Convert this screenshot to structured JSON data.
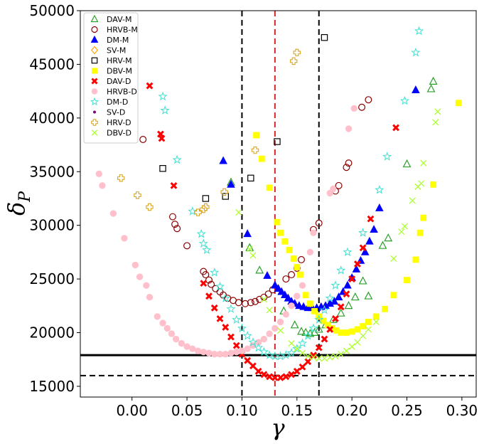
{
  "chart_data": {
    "type": "scatter",
    "title": "",
    "xlabel": "γ",
    "ylabel": "δ",
    "ylabel_sub": "P",
    "xlim": [
      -0.047,
      0.313
    ],
    "ylim": [
      14000,
      50000
    ],
    "x_ticks": [
      0.0,
      0.05,
      0.1,
      0.15,
      0.2,
      0.25,
      0.3
    ],
    "x_tick_labels": [
      "0.00",
      "0.05",
      "0.10",
      "0.15",
      "0.20",
      "0.25",
      "0.30"
    ],
    "y_ticks": [
      15000,
      20000,
      25000,
      30000,
      35000,
      40000,
      45000,
      50000
    ],
    "y_tick_labels": [
      "15000",
      "20000",
      "25000",
      "30000",
      "35000",
      "40000",
      "45000",
      "50000"
    ],
    "grid": false,
    "legend_position": "top-left",
    "reference_lines": [
      {
        "orientation": "vertical",
        "value": 0.1,
        "color": "#000000",
        "style": "dashed"
      },
      {
        "orientation": "vertical",
        "value": 0.17,
        "color": "#000000",
        "style": "dashed"
      },
      {
        "orientation": "vertical",
        "value": 0.13,
        "color": "#d62728",
        "style": "dashed"
      },
      {
        "orientation": "horizontal",
        "value": 17900,
        "color": "#000000",
        "style": "solid"
      },
      {
        "orientation": "horizontal",
        "value": 16000,
        "color": "#000000",
        "style": "dashed"
      }
    ],
    "series": [
      {
        "name": "DAV-M",
        "marker": "triangle-open",
        "color": "#2ca02c",
        "x": [
          0.09,
          0.107,
          0.116,
          0.138,
          0.148,
          0.154,
          0.158,
          0.162,
          0.166,
          0.17,
          0.176,
          0.183,
          0.19,
          0.197,
          0.203,
          0.21,
          0.215,
          0.228,
          0.233,
          0.25,
          0.272,
          0.274
        ],
        "y": [
          34000,
          27900,
          25800,
          22000,
          20700,
          20100,
          20000,
          19900,
          20000,
          20300,
          20700,
          21200,
          21800,
          22500,
          23300,
          24800,
          23400,
          28100,
          28800,
          35700,
          42700,
          43400
        ]
      },
      {
        "name": "HRVB-M",
        "marker": "circle-open",
        "color": "#8b0000",
        "x": [
          0.01,
          0.037,
          0.039,
          0.041,
          0.05,
          0.065,
          0.067,
          0.07,
          0.072,
          0.076,
          0.08,
          0.083,
          0.087,
          0.092,
          0.097,
          0.103,
          0.108,
          0.112,
          0.116,
          0.12,
          0.124,
          0.128,
          0.14,
          0.145,
          0.15,
          0.154,
          0.165,
          0.17,
          0.185,
          0.188,
          0.195,
          0.197,
          0.209,
          0.215
        ],
        "y": [
          38000,
          30800,
          30100,
          29700,
          28100,
          25700,
          25400,
          24900,
          24500,
          24100,
          23800,
          23500,
          23200,
          23000,
          22800,
          22700,
          22800,
          22900,
          23100,
          23300,
          23600,
          24000,
          25000,
          25400,
          26000,
          26800,
          29600,
          30200,
          33200,
          33700,
          35400,
          35800,
          41000,
          41700
        ]
      },
      {
        "name": "DM-M",
        "marker": "triangle",
        "color": "#0000ff",
        "x": [
          0.083,
          0.09,
          0.105,
          0.123,
          0.13,
          0.133,
          0.136,
          0.139,
          0.142,
          0.145,
          0.148,
          0.152,
          0.156,
          0.16,
          0.164,
          0.168,
          0.172,
          0.176,
          0.18,
          0.184,
          0.188,
          0.192,
          0.196,
          0.2,
          0.204,
          0.208,
          0.212,
          0.216,
          0.22,
          0.225,
          0.258
        ],
        "y": [
          36000,
          33800,
          29200,
          25300,
          24400,
          24100,
          23800,
          23500,
          23200,
          22900,
          22700,
          22500,
          22400,
          22300,
          22300,
          22300,
          22400,
          22500,
          22700,
          22900,
          23300,
          23800,
          24400,
          25100,
          25900,
          26700,
          27500,
          28500,
          29600,
          31600,
          42600
        ]
      },
      {
        "name": "SV-M",
        "marker": "diamond-open",
        "color": "#ffa500",
        "x": [],
        "y": []
      },
      {
        "name": "HRV-M",
        "marker": "square-open",
        "color": "#000000",
        "x": [
          0.028,
          0.067,
          0.085,
          0.108,
          0.132,
          0.175
        ],
        "y": [
          35300,
          32500,
          32700,
          34400,
          37800,
          47500
        ]
      },
      {
        "name": "DBV-M",
        "marker": "square",
        "color": "#ffff00",
        "x": [
          0.113,
          0.118,
          0.125,
          0.132,
          0.135,
          0.139,
          0.143,
          0.147,
          0.15,
          0.153,
          0.158,
          0.162,
          0.166,
          0.17,
          0.174,
          0.178,
          0.182,
          0.186,
          0.19,
          0.195,
          0.2,
          0.205,
          0.21,
          0.215,
          0.222,
          0.23,
          0.238,
          0.25,
          0.258,
          0.262,
          0.265,
          0.274,
          0.297
        ],
        "y": [
          38400,
          36200,
          33500,
          30300,
          29300,
          28500,
          27700,
          26900,
          26100,
          25400,
          23500,
          22700,
          22000,
          21500,
          21100,
          20700,
          20400,
          20200,
          20000,
          20000,
          20100,
          20300,
          20600,
          21000,
          21500,
          22200,
          23500,
          24900,
          26800,
          29300,
          30700,
          33800,
          41400
        ]
      },
      {
        "name": "DAV-D",
        "marker": "x-thick",
        "color": "#ff0000",
        "x": [
          0.016,
          0.026,
          0.027,
          0.038,
          0.065,
          0.07,
          0.075,
          0.08,
          0.085,
          0.09,
          0.095,
          0.1,
          0.105,
          0.11,
          0.115,
          0.12,
          0.125,
          0.13,
          0.135,
          0.14,
          0.145,
          0.15,
          0.155,
          0.16,
          0.165,
          0.17,
          0.175,
          0.18,
          0.185,
          0.19,
          0.195,
          0.2,
          0.205,
          0.21,
          0.217,
          0.24
        ],
        "y": [
          43000,
          38500,
          38100,
          33700,
          24600,
          23400,
          22300,
          21300,
          20500,
          19600,
          18800,
          18000,
          17400,
          16900,
          16400,
          16100,
          15900,
          15800,
          15800,
          15900,
          16100,
          16400,
          16800,
          17300,
          17900,
          18600,
          19400,
          20300,
          21300,
          22400,
          23600,
          25000,
          26400,
          27900,
          30600,
          39100
        ]
      },
      {
        "name": "HRVB-D",
        "marker": "circle",
        "color": "#ffc0cb",
        "x": [
          -0.03,
          -0.027,
          -0.017,
          -0.007,
          0.003,
          0.007,
          0.013,
          0.016,
          0.023,
          0.028,
          0.032,
          0.036,
          0.04,
          0.045,
          0.05,
          0.055,
          0.06,
          0.065,
          0.07,
          0.075,
          0.08,
          0.085,
          0.09,
          0.095,
          0.1,
          0.105,
          0.11,
          0.115,
          0.12,
          0.125,
          0.13,
          0.135,
          0.14,
          0.145,
          0.15,
          0.155,
          0.162,
          0.165,
          0.18,
          0.183,
          0.197,
          0.202
        ],
        "y": [
          34800,
          33700,
          31100,
          28800,
          26300,
          25200,
          24400,
          23300,
          21500,
          20900,
          20400,
          19900,
          19400,
          19000,
          18700,
          18500,
          18300,
          18200,
          18100,
          18000,
          18000,
          18000,
          18100,
          18200,
          18300,
          18500,
          18800,
          19100,
          19400,
          19900,
          20400,
          21000,
          21700,
          22500,
          23400,
          24400,
          27500,
          29300,
          33000,
          33400,
          39000,
          40900
        ]
      },
      {
        "name": "DM-D",
        "marker": "star-open",
        "color": "#40e0d0",
        "x": [
          0.028,
          0.03,
          0.041,
          0.055,
          0.063,
          0.065,
          0.068,
          0.075,
          0.08,
          0.085,
          0.09,
          0.095,
          0.1,
          0.105,
          0.11,
          0.115,
          0.12,
          0.125,
          0.13,
          0.135,
          0.14,
          0.145,
          0.15,
          0.155,
          0.16,
          0.165,
          0.17,
          0.175,
          0.18,
          0.185,
          0.19,
          0.196,
          0.21,
          0.225,
          0.232,
          0.248,
          0.258,
          0.261
        ],
        "y": [
          42000,
          40700,
          36100,
          31300,
          29200,
          28300,
          27700,
          25600,
          24300,
          23200,
          22200,
          21200,
          20400,
          19700,
          19100,
          18600,
          18200,
          17900,
          17800,
          17800,
          17900,
          18100,
          18500,
          19000,
          19700,
          20400,
          21200,
          22100,
          23200,
          24400,
          25800,
          27500,
          29300,
          33300,
          36400,
          41600,
          46100,
          48100
        ]
      },
      {
        "name": "SV-D",
        "marker": "dot",
        "color": "#800080",
        "x": [],
        "y": []
      },
      {
        "name": "HRV-D",
        "marker": "plus-open",
        "color": "#daa520",
        "x": [
          -0.01,
          0.005,
          0.016,
          0.06,
          0.065,
          0.067,
          0.084,
          0.112,
          0.147,
          0.15
        ],
        "y": [
          34400,
          32800,
          31700,
          31200,
          31500,
          31700,
          33100,
          37000,
          45300,
          46100
        ]
      },
      {
        "name": "DBV-D",
        "marker": "x-thin",
        "color": "#adff2f",
        "x": [
          0.097,
          0.107,
          0.11,
          0.12,
          0.125,
          0.135,
          0.145,
          0.15,
          0.155,
          0.16,
          0.165,
          0.17,
          0.175,
          0.18,
          0.185,
          0.19,
          0.195,
          0.2,
          0.205,
          0.21,
          0.215,
          0.222,
          0.238,
          0.245,
          0.248,
          0.255,
          0.26,
          0.263,
          0.265,
          0.276,
          0.278
        ],
        "y": [
          31200,
          27800,
          27200,
          23100,
          22100,
          20200,
          19000,
          18500,
          18100,
          17800,
          17700,
          17600,
          17600,
          17700,
          17800,
          18000,
          18300,
          18700,
          19100,
          19700,
          20300,
          21000,
          26900,
          29400,
          29900,
          32300,
          33600,
          33900,
          35800,
          39600,
          40600
        ]
      }
    ]
  }
}
